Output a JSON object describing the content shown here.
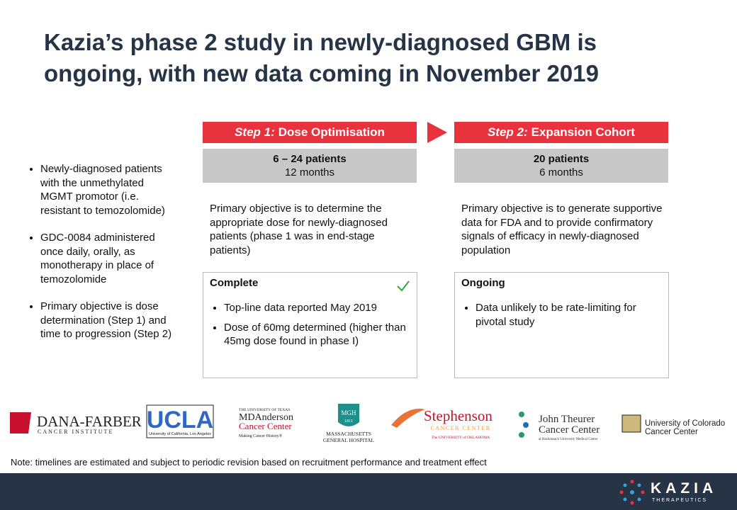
{
  "title": "Kazia’s phase 2 study in newly-diagnosed GBM is ongoing, with new data coming in November 2019",
  "bullets": [
    "Newly-diagnosed patients with the unmethylated MGMT promotor (i.e. resistant to temozolomide)",
    "GDC-0084 administered once daily, orally, as monotherapy in place of temozolomide",
    "Primary objective is dose determination (Step 1) and time to progression (Step 2)"
  ],
  "steps": [
    {
      "label": "Step 1:",
      "name": "Dose Optimisation",
      "patients": "6 – 24 patients",
      "duration": "12 months",
      "objective": "Primary objective is to determine the appropriate dose for newly-diagnosed patients (phase 1 was in end-stage patients)",
      "status": "Complete",
      "items": [
        "Top-line data reported May 2019",
        "Dose of 60mg determined (higher than 45mg dose found in phase I)"
      ]
    },
    {
      "label": "Step 2:",
      "name": "Expansion Cohort",
      "patients": "20 patients",
      "duration": "6 months",
      "objective": "Primary objective is to generate supportive data for FDA and to provide confirmatory signals of efficacy in newly-diagnosed population",
      "status": "Ongoing",
      "items": [
        "Data unlikely to be rate-limiting for pivotal study"
      ]
    }
  ],
  "logos": {
    "dana_farber": [
      "DANA-FARBER",
      "CANCER INSTITUTE"
    ],
    "ucla": [
      "UCLA",
      "University of California, Los Angeles"
    ],
    "md_anderson": [
      "THE UNIVERSITY OF TEXAS",
      "MDAnderson",
      "Cancer Center",
      "Making Cancer History®"
    ],
    "mgh": [
      "MGH",
      "1811",
      "MASSACHUSETTS",
      "GENERAL HOSPITAL"
    ],
    "stephenson": [
      "Stephenson",
      "CANCER CENTER",
      "The UNIVERSITY of OKLAHOMA"
    ],
    "theurer": [
      "John Theurer",
      "Cancer Center",
      "at Hackensack University Medical Center"
    ],
    "colorado": [
      "University of Colorado",
      "Cancer Center"
    ]
  },
  "note": "Note: timelines are estimated and subject to periodic revision based on recruitment performance and treatment effect",
  "brand": {
    "name": "KAZIA",
    "tagline": "THERAPEUTICS"
  }
}
